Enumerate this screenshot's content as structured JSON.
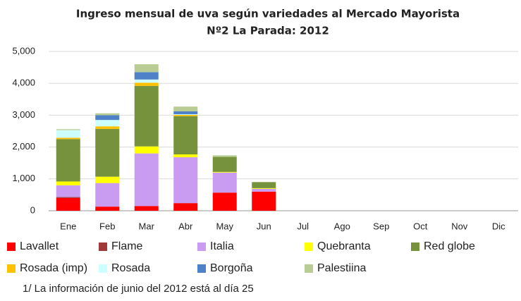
{
  "chart_data": {
    "type": "stacked_bar",
    "title": "Ingreso mensual de uva según variedades al Mercado Mayorista",
    "subtitle": "Nº2 La Parada: 2012",
    "note": "1/ La información de junio  del 2012 está al día 25",
    "categories": [
      "Ene",
      "Feb",
      "Mar",
      "Abr",
      "May",
      "Jun",
      "Jul",
      "Ago",
      "Sep",
      "Oct",
      "Nov",
      "Dic"
    ],
    "ylim": [
      0,
      5000
    ],
    "yticks": [
      {
        "value": 0,
        "label": "0"
      },
      {
        "value": 1000,
        "label": "1,000"
      },
      {
        "value": 2000,
        "label": "2,000"
      },
      {
        "value": 3000,
        "label": "3,000"
      },
      {
        "value": 4000,
        "label": "4,000"
      },
      {
        "value": 5000,
        "label": "5,000"
      }
    ],
    "grid": true,
    "series": [
      {
        "name": "Lavallet",
        "color": "#ff0000",
        "values": [
          400,
          130,
          150,
          240,
          570,
          600,
          0,
          0,
          0,
          0,
          0,
          0
        ]
      },
      {
        "name": "Flame",
        "color": "#a0393a",
        "values": [
          30,
          0,
          0,
          0,
          0,
          0,
          0,
          0,
          0,
          0,
          0,
          0
        ]
      },
      {
        "name": "Italia",
        "color": "#c99cf2",
        "values": [
          370,
          740,
          1650,
          1440,
          630,
          90,
          0,
          0,
          0,
          0,
          0,
          0
        ]
      },
      {
        "name": "Quebranta",
        "color": "#ffff00",
        "values": [
          120,
          200,
          220,
          90,
          20,
          20,
          0,
          0,
          0,
          0,
          0,
          0
        ]
      },
      {
        "name": "Red globe",
        "color": "#76923c",
        "values": [
          1330,
          1500,
          1900,
          1200,
          470,
          190,
          0,
          0,
          0,
          0,
          0,
          0
        ]
      },
      {
        "name": "Rosada (imp)",
        "color": "#ffc000",
        "values": [
          40,
          80,
          100,
          40,
          0,
          0,
          0,
          0,
          0,
          0,
          0,
          0
        ]
      },
      {
        "name": "Rosada",
        "color": "#ccffff",
        "values": [
          240,
          200,
          100,
          20,
          0,
          0,
          0,
          0,
          0,
          0,
          0,
          0
        ]
      },
      {
        "name": "Borgoña",
        "color": "#4f81c8",
        "values": [
          0,
          150,
          230,
          90,
          0,
          0,
          0,
          0,
          0,
          0,
          0,
          0
        ]
      },
      {
        "name": "Palestiina",
        "color": "#b8cc94",
        "values": [
          30,
          60,
          250,
          150,
          50,
          0,
          0,
          0,
          0,
          0,
          0,
          0
        ]
      }
    ]
  }
}
